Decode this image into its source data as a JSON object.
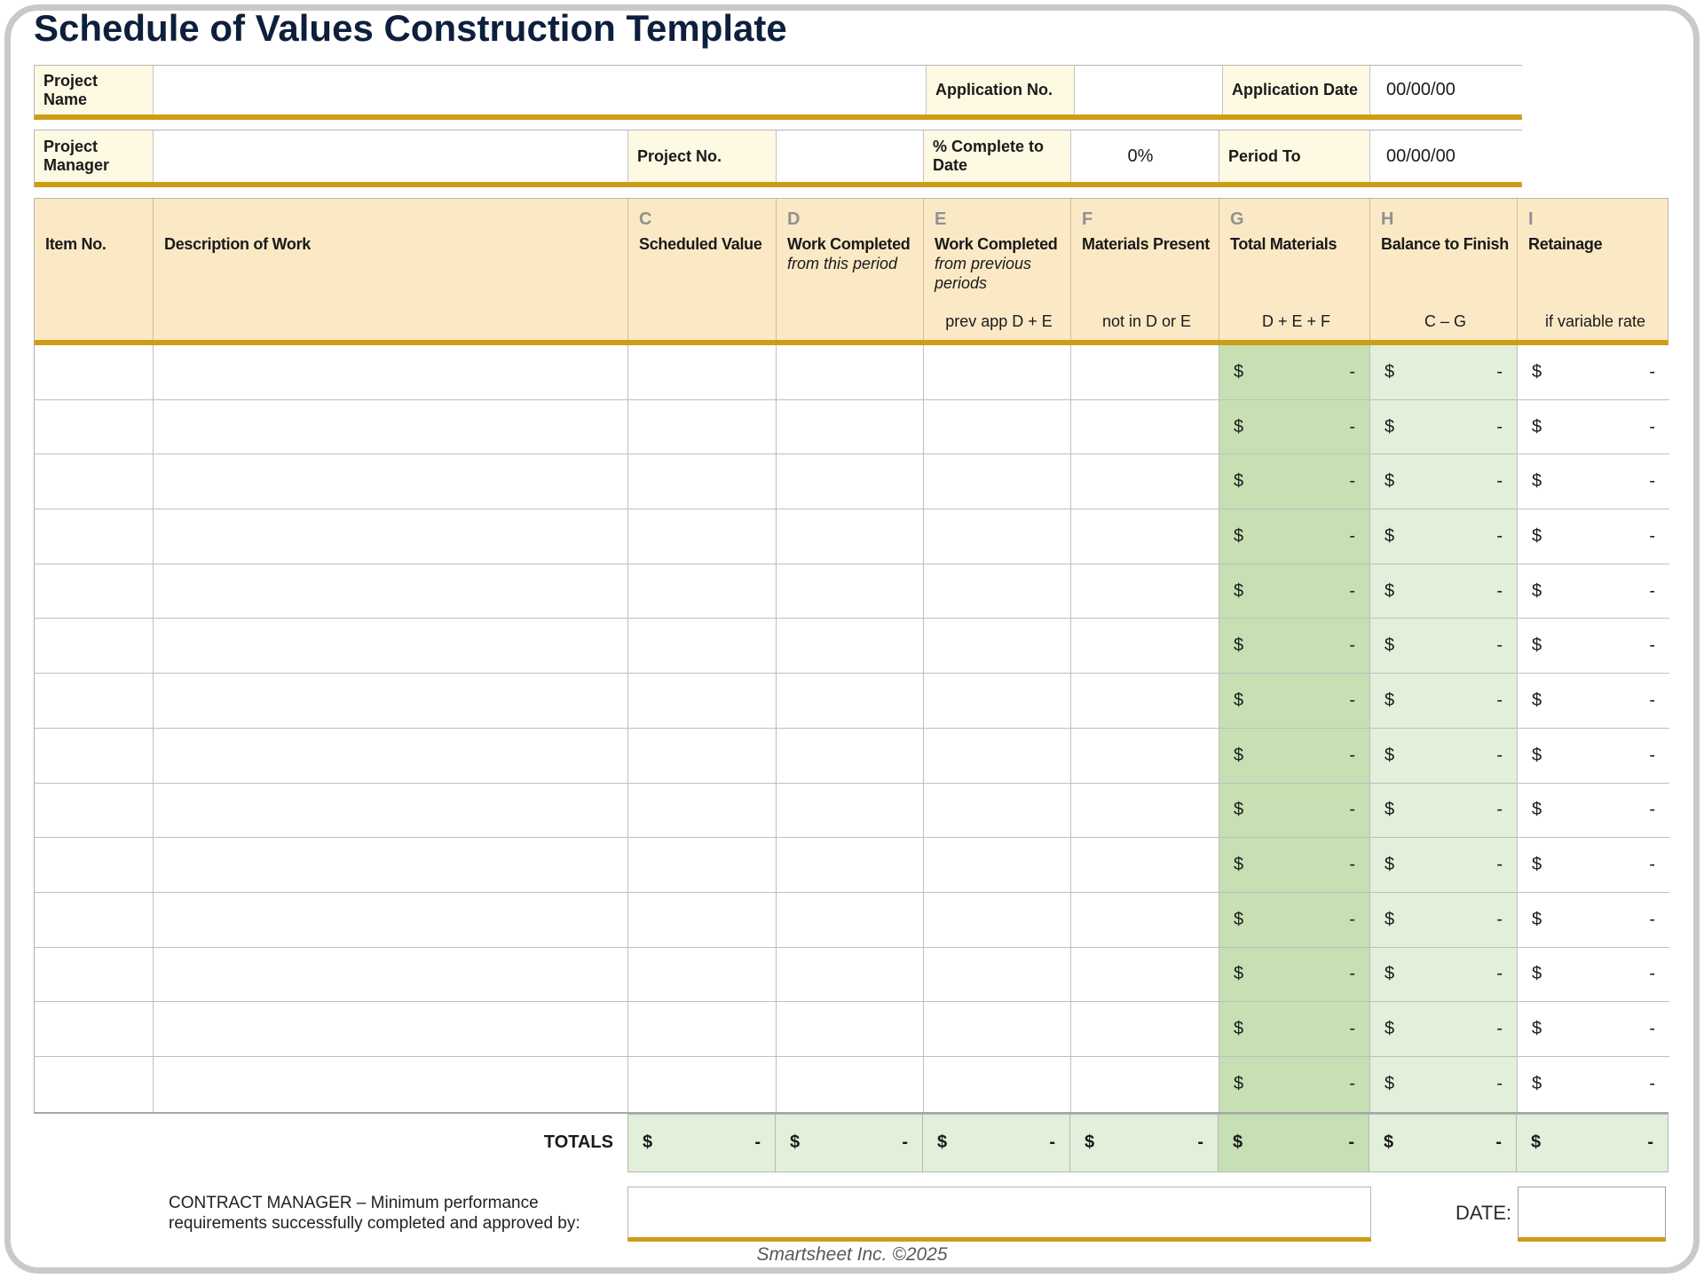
{
  "page": {
    "title": "Schedule of Values Construction Template",
    "footer_credit": "Smartsheet Inc. ©2025"
  },
  "info_row1": {
    "project_name_label": "Project Name",
    "project_name_value": "",
    "application_no_label": "Application No.",
    "application_no_value": "",
    "application_date_label": "Application Date",
    "application_date_value": "00/00/00"
  },
  "info_row2": {
    "project_manager_label": "Project Manager",
    "project_manager_value": "",
    "project_no_label": "Project No.",
    "project_no_value": "",
    "pct_complete_label": "% Complete to Date",
    "pct_complete_value": "0%",
    "period_to_label": "Period To",
    "period_to_value": "00/00/00"
  },
  "table": {
    "columns": [
      {
        "key": "item-no",
        "letter": "",
        "title": "Item No.",
        "subtitle": "",
        "formula": ""
      },
      {
        "key": "description",
        "letter": "",
        "title": "Description of Work",
        "subtitle": "",
        "formula": ""
      },
      {
        "key": "scheduled-value",
        "letter": "C",
        "title": "Scheduled Value",
        "subtitle": "",
        "formula": ""
      },
      {
        "key": "work-completed-this",
        "letter": "D",
        "title": "Work Completed",
        "subtitle": "from this period",
        "formula": ""
      },
      {
        "key": "work-completed-prev",
        "letter": "E",
        "title": "Work Completed",
        "subtitle": "from previous periods",
        "formula": "prev app D + E"
      },
      {
        "key": "materials-present",
        "letter": "F",
        "title": "Materials Present",
        "subtitle": "",
        "formula": "not in D or E"
      },
      {
        "key": "total-materials",
        "letter": "G",
        "title": "Total Materials",
        "subtitle": "",
        "formula": "D + E + F"
      },
      {
        "key": "balance-to-finish",
        "letter": "H",
        "title": "Balance to Finish",
        "subtitle": "",
        "formula": "C – G"
      },
      {
        "key": "retainage",
        "letter": "I",
        "title": "Retainage",
        "subtitle": "",
        "formula": "if variable rate"
      }
    ],
    "row_count": 14,
    "currency_symbol": "$",
    "empty_value": "-",
    "totals_label": "TOTALS"
  },
  "signature": {
    "label_line1": "CONTRACT MANAGER – Minimum performance",
    "label_line2": "requirements successfully completed and approved by:",
    "value": "",
    "date_label": "DATE:",
    "date_value": ""
  },
  "colors": {
    "accent_gold": "#ce9d16",
    "header_tan": "#fbe9c6",
    "label_cream": "#fdf9e3",
    "green_medium": "#c6e0b4",
    "green_light": "#e2efda",
    "title_navy": "#0d1f3c"
  }
}
